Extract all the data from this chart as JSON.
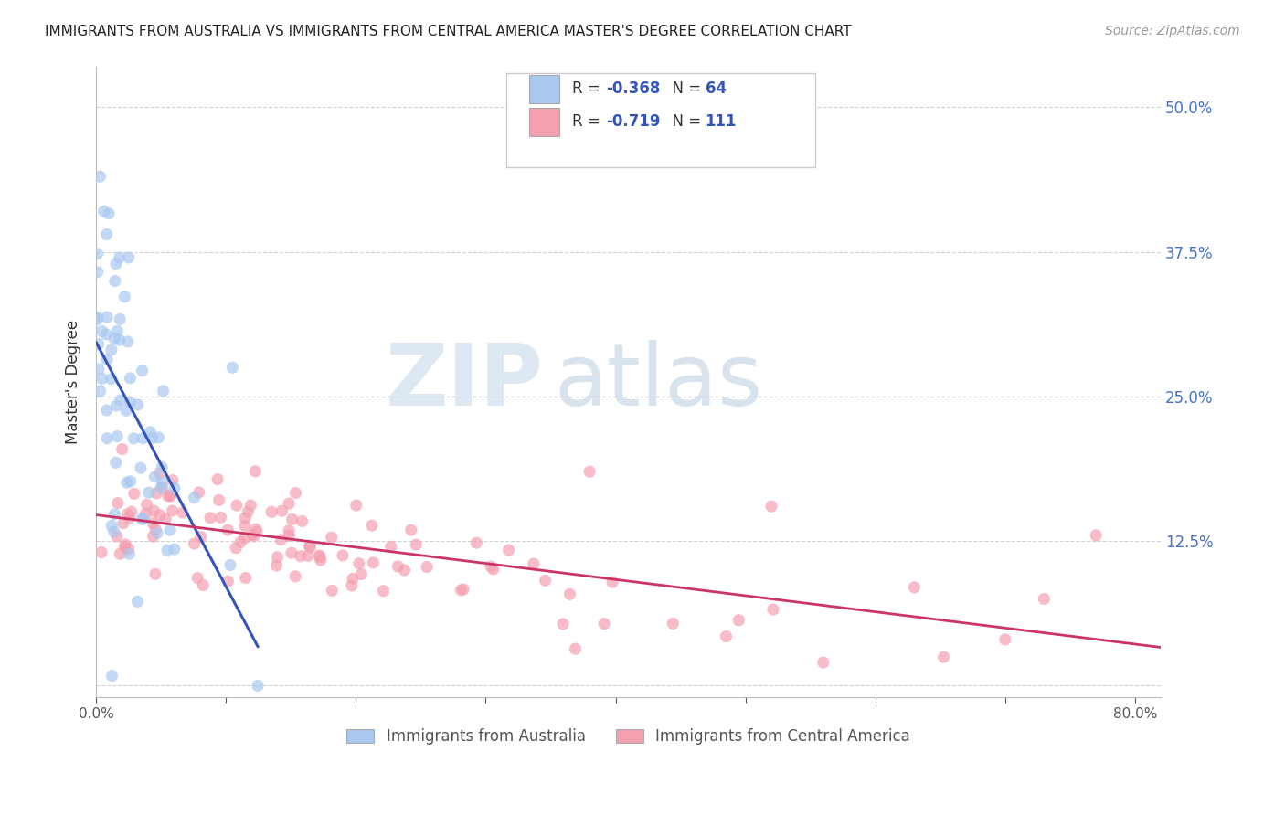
{
  "title": "IMMIGRANTS FROM AUSTRALIA VS IMMIGRANTS FROM CENTRAL AMERICA MASTER'S DEGREE CORRELATION CHART",
  "source": "Source: ZipAtlas.com",
  "ylabel": "Master's Degree",
  "ytick_labels": [
    "",
    "12.5%",
    "25.0%",
    "37.5%",
    "50.0%"
  ],
  "ytick_values": [
    0.0,
    0.125,
    0.25,
    0.375,
    0.5
  ],
  "xlim": [
    0.0,
    0.82
  ],
  "ylim": [
    -0.01,
    0.535
  ],
  "legend_label1": "R = -0.368   N = 64",
  "legend_label2": "R = -0.719   N = 111",
  "legend_bottom1": "Immigrants from Australia",
  "legend_bottom2": "Immigrants from Central America",
  "color_australia": "#a8c8f0",
  "color_central_america": "#f4a0b0",
  "line_color_australia": "#3355bb",
  "line_color_central_america": "#cc3366",
  "watermark_zip": "ZIP",
  "watermark_atlas": "atlas",
  "background_color": "#ffffff",
  "dot_size": 90,
  "dot_alpha": 0.7,
  "legend_R_color": "#3355bb",
  "legend_N_color": "#3355bb"
}
